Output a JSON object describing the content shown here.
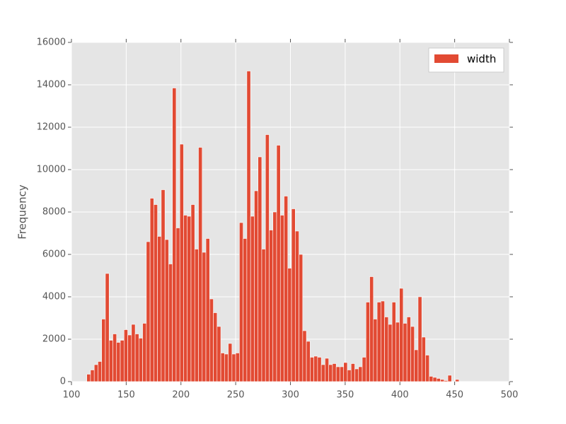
{
  "chart_data": {
    "type": "histogram",
    "ylabel": "Frequency",
    "legend": "upper right",
    "grid": true,
    "xlim": [
      100,
      500
    ],
    "xticks": [
      100,
      150,
      200,
      250,
      300,
      350,
      400,
      450,
      500
    ],
    "ylim": [
      0,
      16000
    ],
    "yticks": [
      0,
      2000,
      4000,
      6000,
      8000,
      10000,
      12000,
      14000,
      16000
    ],
    "bins": [
      114,
      117.4,
      120.8,
      124.2,
      127.6,
      131,
      134.4,
      137.8,
      141.2,
      144.6,
      148,
      151.4,
      154.8,
      158.2,
      161.6,
      165,
      168.4,
      171.8,
      175.2,
      178.6,
      182,
      185.4,
      188.8,
      192.2,
      195.6,
      199,
      202.4,
      205.8,
      209.2,
      212.6,
      216,
      219.4,
      222.8,
      226.2,
      229.6,
      233,
      236.4,
      239.8,
      243.2,
      246.6,
      250,
      253.4,
      256.8,
      260.2,
      263.6,
      267,
      270.4,
      273.8,
      277.2,
      280.6,
      284,
      287.4,
      290.8,
      294.2,
      297.6,
      301,
      304.4,
      307.8,
      311.2,
      314.6,
      318,
      321.4,
      324.8,
      328.2,
      331.6,
      335,
      338.4,
      341.8,
      345.2,
      348.6,
      352,
      355.4,
      358.8,
      362.2,
      365.6,
      369,
      372.4,
      375.8,
      379.2,
      382.6,
      386,
      389.4,
      392.8,
      396.2,
      399.6,
      403,
      406.4,
      409.8,
      413.2,
      416.6,
      420,
      423.4,
      426.8,
      430.2,
      433.6,
      437,
      440.4,
      443.8,
      447.2,
      450.6,
      454
    ],
    "series": [
      {
        "name": "width",
        "color": "#e24a33",
        "values": [
          350,
          550,
          800,
          950,
          2950,
          5100,
          1950,
          2250,
          1850,
          1950,
          2450,
          2200,
          2700,
          2250,
          2050,
          2750,
          6600,
          8650,
          8350,
          6850,
          9050,
          6700,
          5550,
          13850,
          7250,
          11200,
          7850,
          7800,
          8350,
          6250,
          11050,
          6100,
          6750,
          3900,
          3250,
          2600,
          1350,
          1300,
          1800,
          1300,
          1350,
          7500,
          6750,
          14650,
          7800,
          9000,
          10600,
          6250,
          11650,
          7150,
          8000,
          11150,
          7850,
          8750,
          5350,
          8150,
          7100,
          6000,
          2400,
          1900,
          1150,
          1200,
          1150,
          800,
          1100,
          800,
          850,
          700,
          700,
          900,
          550,
          850,
          600,
          700,
          1150,
          3750,
          4950,
          2950,
          3750,
          3800,
          3050,
          2700,
          3750,
          2800,
          4400,
          2750,
          3050,
          2600,
          1500,
          4000,
          2100,
          1250,
          250,
          200,
          150,
          100,
          50,
          300,
          0,
          100
        ]
      }
    ]
  }
}
